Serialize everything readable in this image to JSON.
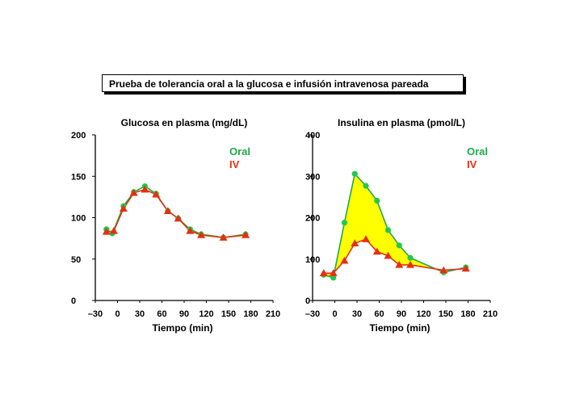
{
  "header": {
    "title": "Prueba de tolerancia oral a la glucosa e infusión intravenosa pareada"
  },
  "colors": {
    "oral": "#22a84a",
    "iv": "#e53010",
    "fill": "#ffff00",
    "oral_marker": "#22c94a"
  },
  "chart_data": [
    {
      "type": "line",
      "title": "Glucosa en plasma (mg/dL)",
      "xlabel": "Tiempo (min)",
      "ylabel": "",
      "xlim": [
        -30,
        210
      ],
      "ylim": [
        0,
        200
      ],
      "xticks": [
        -30,
        0,
        30,
        60,
        90,
        120,
        150,
        180,
        210
      ],
      "xtick_labels": [
        "–30",
        "0",
        "30",
        "60",
        "90",
        "120",
        "150",
        "180",
        "210"
      ],
      "yticks": [
        0,
        50,
        100,
        150,
        200
      ],
      "legend": [
        "Oral",
        "IV"
      ],
      "legend_position": "top-right",
      "series": [
        {
          "name": "Oral",
          "x": [
            -15,
            -7,
            8,
            22,
            37,
            52,
            68,
            82,
            98,
            113,
            143,
            173
          ],
          "y": [
            86,
            81,
            114,
            131,
            138,
            129,
            108,
            99,
            86,
            80,
            76,
            80
          ]
        },
        {
          "name": "IV",
          "x": [
            -15,
            -5,
            8,
            22,
            37,
            52,
            68,
            82,
            98,
            113,
            143,
            173
          ],
          "y": [
            83,
            84,
            111,
            130,
            134,
            128,
            108,
            99,
            84,
            79,
            76,
            79
          ]
        }
      ]
    },
    {
      "type": "area",
      "title": "Insulina en plasma (pmol/L)",
      "xlabel": "Tiempo (min)",
      "ylabel": "",
      "xlim": [
        -30,
        210
      ],
      "ylim": [
        0,
        400
      ],
      "xticks": [
        -30,
        0,
        30,
        60,
        90,
        120,
        150,
        180,
        210
      ],
      "xtick_labels": [
        "–30",
        "0",
        "30",
        "60",
        "90",
        "120",
        "150",
        "180",
        "210"
      ],
      "yticks": [
        0,
        100,
        200,
        300,
        400
      ],
      "legend": [
        "Oral",
        "IV"
      ],
      "legend_position": "top-right",
      "fill_between": [
        "Oral",
        "IV"
      ],
      "series": [
        {
          "name": "Oral",
          "x": [
            -15,
            -2,
            13,
            27,
            42,
            57,
            72,
            87,
            102,
            147,
            177
          ],
          "y": [
            62,
            55,
            188,
            306,
            277,
            241,
            170,
            133,
            103,
            68,
            80
          ]
        },
        {
          "name": "IV",
          "x": [
            -15,
            -2,
            13,
            27,
            42,
            57,
            72,
            87,
            102,
            147,
            177
          ],
          "y": [
            66,
            66,
            96,
            138,
            148,
            118,
            108,
            86,
            86,
            73,
            77
          ]
        }
      ]
    }
  ]
}
